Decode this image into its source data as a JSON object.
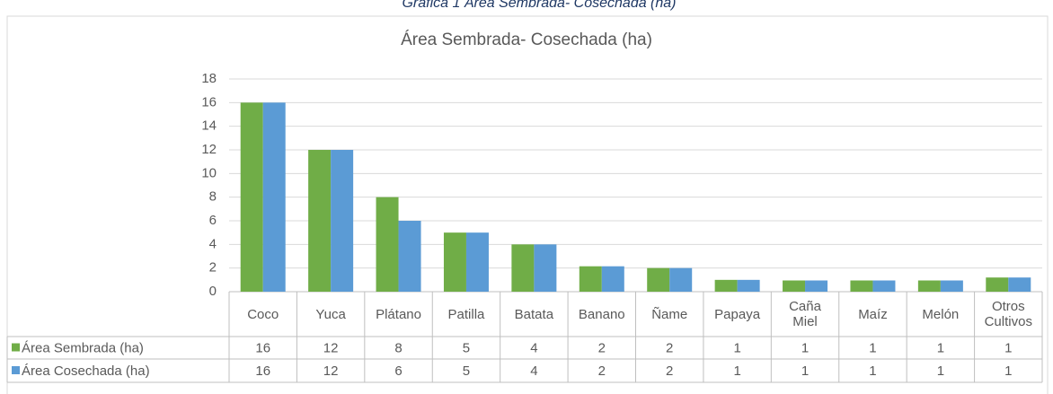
{
  "caption": "Gráfica 1 Área Sembrada- Cosechada (ha)",
  "chart_data": {
    "type": "bar",
    "title": "Área Sembrada- Cosechada (ha)",
    "categories": [
      "Coco",
      "Yuca",
      "Plátano",
      "Patilla",
      "Batata",
      "Banano",
      "Ñame",
      "Papaya",
      "Caña Miel",
      "Maíz",
      "Melón",
      "Otros Cultivos"
    ],
    "series": [
      {
        "name": "Área Sembrada (ha)",
        "color": "#70ad47",
        "values": [
          16,
          12,
          8,
          5,
          4,
          2.15,
          2,
          1,
          0.95,
          0.95,
          0.95,
          1.2
        ],
        "value_labels": [
          "16",
          "12",
          "8",
          "5",
          "4",
          "2",
          "2",
          "1",
          "1",
          "1",
          "1",
          "1"
        ]
      },
      {
        "name": "Área Cosechada (ha)",
        "color": "#5b9bd5",
        "values": [
          16,
          12,
          6,
          5,
          4,
          2.15,
          2,
          1,
          0.95,
          0.95,
          0.95,
          1.2
        ],
        "value_labels": [
          "16",
          "12",
          "6",
          "5",
          "4",
          "2",
          "2",
          "1",
          "1",
          "1",
          "1",
          "1"
        ]
      }
    ],
    "ylim": [
      0,
      18
    ],
    "yticks": [
      0,
      2,
      4,
      6,
      8,
      10,
      12,
      14,
      16,
      18
    ],
    "grid": true
  }
}
